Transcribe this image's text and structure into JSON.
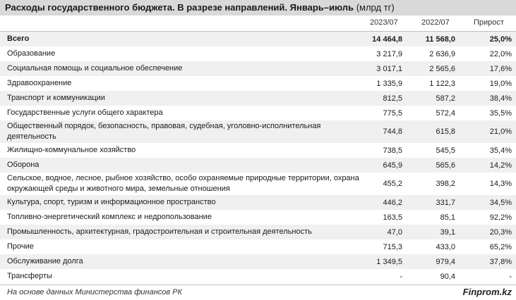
{
  "title": "Расходы государственного бюджета. В разрезе направлений. Январь–июль",
  "title_unit": "(млрд тг)",
  "columns": [
    "2023/07",
    "2022/07",
    "Прирост"
  ],
  "rows": [
    {
      "name": "Всего",
      "v2023": "14 464,8",
      "v2022": "11 568,0",
      "growth": "25,0%",
      "bold": true
    },
    {
      "name": "Образование",
      "v2023": "3 217,9",
      "v2022": "2 636,9",
      "growth": "22,0%"
    },
    {
      "name": "Социальная помощь и социальное обеспечение",
      "v2023": "3 017,1",
      "v2022": "2 565,6",
      "growth": "17,6%"
    },
    {
      "name": "Здравоохранение",
      "v2023": "1 335,9",
      "v2022": "1 122,3",
      "growth": "19,0%"
    },
    {
      "name": "Транспорт и коммуникации",
      "v2023": "812,5",
      "v2022": "587,2",
      "growth": "38,4%"
    },
    {
      "name": "Государственные услуги общего характера",
      "v2023": "775,5",
      "v2022": "572,4",
      "growth": "35,5%"
    },
    {
      "name": "Общественный порядок, безопасность, правовая, судебная, уголовно-исполнительная деятельность",
      "v2023": "744,8",
      "v2022": "615,8",
      "growth": "21,0%"
    },
    {
      "name": "Жилищно-коммунальное хозяйство",
      "v2023": "738,5",
      "v2022": "545,5",
      "growth": "35,4%"
    },
    {
      "name": "Оборона",
      "v2023": "645,9",
      "v2022": "565,6",
      "growth": "14,2%"
    },
    {
      "name": "Сельское, водное, лесное, рыбное хозяйство, особо охраняемые природные территории, охрана окружающей среды и животного мира, земельные отношения",
      "v2023": "455,2",
      "v2022": "398,2",
      "growth": "14,3%"
    },
    {
      "name": "Культура, спорт, туризм и информационное пространство",
      "v2023": "446,2",
      "v2022": "331,7",
      "growth": "34,5%"
    },
    {
      "name": "Топливно-энергетический комплекс и недропользование",
      "v2023": "163,5",
      "v2022": "85,1",
      "growth": "92,2%"
    },
    {
      "name": "Промышленность, архитектурная, градостроительная и строительная деятельность",
      "v2023": "47,0",
      "v2022": "39,1",
      "growth": "20,3%"
    },
    {
      "name": "Прочие",
      "v2023": "715,3",
      "v2022": "433,0",
      "growth": "65,2%"
    },
    {
      "name": "Обслуживание долга",
      "v2023": "1 349,5",
      "v2022": "979,4",
      "growth": "37,8%"
    },
    {
      "name": "Трансферты",
      "v2023": "-",
      "v2022": "90,4",
      "growth": "-"
    }
  ],
  "source": "На основе данных Министерства финансов РК",
  "brand": "Finprom.kz"
}
